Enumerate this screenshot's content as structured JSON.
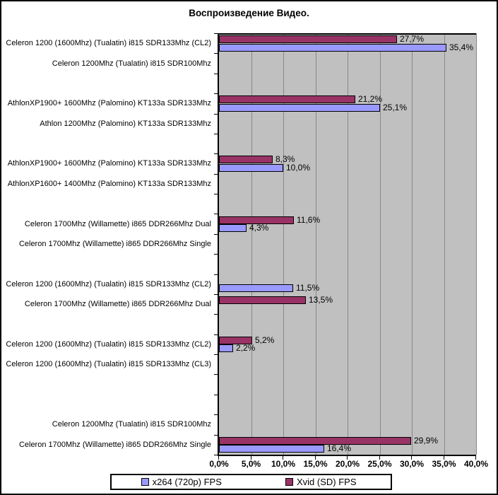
{
  "chart_data": {
    "type": "bar",
    "orientation": "horizontal",
    "title": "Воспроизведение Видео.",
    "xlabel": "",
    "ylabel": "",
    "xlim": [
      0,
      40
    ],
    "x_tick_step": 5,
    "x_tick_labels": [
      "0,0%",
      "5,0%",
      "10,0%",
      "15,0%",
      "20,0%",
      "25,0%",
      "30,0%",
      "35,0%",
      "40,0%"
    ],
    "grid": true,
    "legend_position": "bottom",
    "series": [
      {
        "name": "x264 (720p) FPS",
        "color": "#9999FF"
      },
      {
        "name": "Xvid (SD) FPS",
        "color": "#993366"
      }
    ],
    "rows": [
      {
        "label": "Celeron 1200 (1600Mhz) (Tualatin) i815 SDR133Mhz (CL2)",
        "xvid": 27.7,
        "x264": 35.4,
        "xvid_label": "27,7%",
        "x264_label": "35,4%"
      },
      {
        "label": "Celeron 1200Mhz (Tualatin) i815 SDR100Mhz"
      },
      {
        "label": ""
      },
      {
        "label": "AthlonXP1900+ 1600Mhz (Palomino) KT133a SDR133Mhz",
        "xvid": 21.2,
        "x264": 25.1,
        "xvid_label": "21,2%",
        "x264_label": "25,1%"
      },
      {
        "label": "Athlon 1200Mhz (Palomino) KT133a SDR133Mhz"
      },
      {
        "label": ""
      },
      {
        "label": "AthlonXP1900+ 1600Mhz (Palomino) KT133a SDR133Mhz",
        "xvid": 8.3,
        "x264": 10.0,
        "xvid_label": "8,3%",
        "x264_label": "10,0%"
      },
      {
        "label": "AthlonXP1600+ 1400Mhz (Palomino) KT133a SDR133Mhz"
      },
      {
        "label": ""
      },
      {
        "label": "Celeron 1700Mhz  (Willamette) i865 DDR266Mhz Dual",
        "xvid": 11.6,
        "x264": 4.3,
        "xvid_label": "11,6%",
        "x264_label": "4,3%"
      },
      {
        "label": "Celeron 1700Mhz  (Willamette) i865 DDR266Mhz Single"
      },
      {
        "label": ""
      },
      {
        "label": "Celeron 1200 (1600Mhz) (Tualatin) i815 SDR133Mhz (CL2)",
        "x264": 11.5,
        "x264_label": "11,5%"
      },
      {
        "label": "Celeron 1700Mhz  (Willamette) i865 DDR266Mhz Dual",
        "xvid": 13.5,
        "xvid_label": "13,5%"
      },
      {
        "label": ""
      },
      {
        "label": "Celeron 1200 (1600Mhz) (Tualatin) i815 SDR133Mhz (CL2)",
        "xvid": 5.2,
        "x264": 2.2,
        "xvid_label": "5,2%",
        "x264_label": "2,2%"
      },
      {
        "label": "Celeron 1200 (1600Mhz) (Tualatin) i815 SDR133Mhz (CL3)"
      },
      {
        "label": ""
      },
      {
        "label": ""
      },
      {
        "label": "Celeron 1200Mhz (Tualatin) i815 SDR100Mhz"
      },
      {
        "label": "Celeron 1700Mhz  (Willamette) i865 DDR266Mhz Single",
        "xvid": 29.9,
        "x264": 16.4,
        "xvid_label": "29,9%",
        "x264_label": "16,4%"
      }
    ]
  },
  "colors": {
    "plot_bg": "#C0C0C0",
    "gridline": "#878787",
    "axis": "#000000",
    "bar_border": "#000000",
    "chart_border": "#000000",
    "background": "#FFFFFF"
  }
}
